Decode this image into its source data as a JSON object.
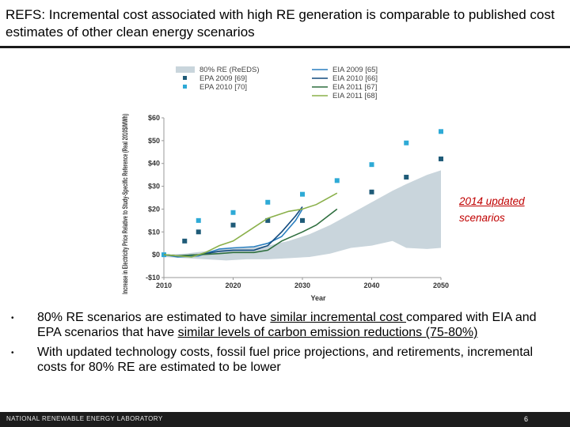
{
  "slide": {
    "title": "REFS: Incremental cost associated with high RE generation is comparable to published cost estimates of other clean energy scenarios",
    "note_line1": "2014 updated",
    "note_line2": "scenarios",
    "bullets": [
      {
        "pre": "80% RE scenarios are estimated to have ",
        "u1": "similar incremental cost ",
        "mid": "compared with EIA and EPA scenarios that have ",
        "u2": "similar levels of carbon emission reductions (75-80%)",
        "post": ""
      },
      {
        "text": "With updated technology costs, fossil fuel price projections, and retirements, incremental costs for 80% RE are estimated to be lower"
      }
    ],
    "footer_label": "NATIONAL RENEWABLE ENERGY LABORATORY",
    "page_number": "6"
  },
  "chart_data": {
    "type": "line",
    "title": "",
    "xlabel": "Year",
    "ylabel": "Increase in Electricity Price Relative to Study-Specific Reference (Real 2010$/MWh)",
    "xlim": [
      2010,
      2050
    ],
    "ylim": [
      -10,
      60
    ],
    "xticks": [
      2010,
      2020,
      2030,
      2040,
      2050
    ],
    "xtick_labels": [
      "2010",
      "2020",
      "2030",
      "2040",
      "2050"
    ],
    "yticks": [
      -10,
      0,
      10,
      20,
      30,
      40,
      50,
      60
    ],
    "ytick_labels": [
      "-$10",
      "$0",
      "$10",
      "$20",
      "$30",
      "$40",
      "$50",
      "$60"
    ],
    "band": {
      "name": "80% RE (ReEDS)",
      "color": "#c9d5dc",
      "x": [
        2010,
        2013,
        2016,
        2019,
        2022,
        2025,
        2028,
        2031,
        2034,
        2037,
        2040,
        2043,
        2045,
        2048,
        2050
      ],
      "upper": [
        0,
        0.5,
        1.5,
        2.5,
        3,
        4,
        6,
        9,
        13,
        18,
        23,
        28,
        31,
        35,
        37
      ],
      "lower": [
        -1,
        -1.5,
        -2,
        -2.5,
        -2,
        -2,
        -1.5,
        -1,
        0.5,
        3,
        4,
        6,
        3,
        2.5,
        3
      ]
    },
    "series": [
      {
        "name": "EPA 2009 [69]",
        "kind": "scatter",
        "color": "#1f5b78",
        "x": [
          2013,
          2015,
          2020,
          2025,
          2030,
          2040,
          2045,
          2050
        ],
        "y": [
          6,
          10,
          13,
          15,
          15,
          27.5,
          34,
          42
        ]
      },
      {
        "name": "EPA 2010 [70]",
        "kind": "scatter",
        "color": "#2eaad6",
        "x": [
          2010,
          2015,
          2020,
          2025,
          2030,
          2035,
          2040,
          2045,
          2050
        ],
        "y": [
          0,
          15,
          18.5,
          23,
          26.5,
          32.5,
          39.5,
          49,
          54
        ]
      },
      {
        "name": "EIA 2009 [65]",
        "kind": "line",
        "color": "#2a7fbf",
        "x": [
          2010,
          2012,
          2015,
          2018,
          2020,
          2023,
          2025,
          2027,
          2029,
          2030
        ],
        "y": [
          0,
          -1,
          -0.5,
          2.5,
          3,
          3.5,
          5,
          8,
          15,
          20
        ]
      },
      {
        "name": "EIA 2010 [66]",
        "kind": "line",
        "color": "#124a7e",
        "x": [
          2010,
          2012,
          2015,
          2018,
          2020,
          2023,
          2025,
          2027,
          2029,
          2030
        ],
        "y": [
          0,
          -0.5,
          0,
          1.5,
          2,
          2,
          4,
          10,
          17,
          21
        ]
      },
      {
        "name": "EIA 2011 [67]",
        "kind": "line",
        "color": "#2e6e3e",
        "x": [
          2010,
          2012,
          2015,
          2018,
          2020,
          2023,
          2025,
          2027,
          2030,
          2032,
          2035
        ],
        "y": [
          0,
          -0.5,
          0,
          0.5,
          1,
          1,
          2,
          6,
          10,
          13,
          20
        ]
      },
      {
        "name": "EIA 2011 [68]",
        "kind": "line",
        "color": "#8ab04a",
        "x": [
          2010,
          2012,
          2014,
          2016,
          2018,
          2020,
          2022,
          2025,
          2028,
          2030,
          2032,
          2035
        ],
        "y": [
          0,
          -0.5,
          -1,
          1,
          4,
          6,
          10,
          16,
          19,
          20,
          22,
          27
        ]
      }
    ],
    "legend_position": "top"
  }
}
